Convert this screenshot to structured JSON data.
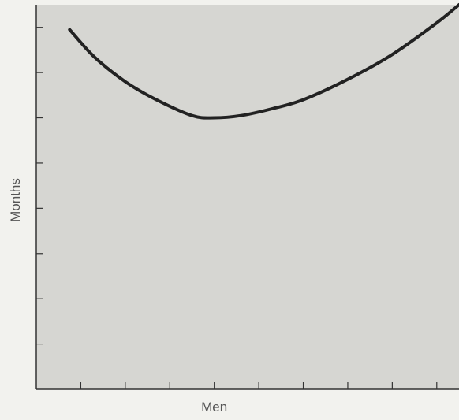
{
  "chart_data": {
    "type": "line",
    "title": "",
    "xlabel": "Men",
    "ylabel": "Months",
    "x_ticks": [
      1,
      2,
      3,
      4,
      5,
      6,
      7,
      8,
      9
    ],
    "y_ticks": [
      1,
      2,
      3,
      4,
      5,
      6,
      7,
      8
    ],
    "xlim": [
      0,
      9.5
    ],
    "ylim": [
      0,
      8.5
    ],
    "grid": false,
    "show_tick_labels": false,
    "series": [
      {
        "x": [
          0.75,
          1.3,
          2.0,
          2.7,
          3.5,
          4.0,
          4.6,
          5.3,
          6.0,
          7.0,
          8.0,
          9.0,
          9.5
        ],
        "y": [
          7.95,
          7.35,
          6.8,
          6.4,
          6.05,
          6.0,
          6.05,
          6.2,
          6.4,
          6.85,
          7.4,
          8.1,
          8.5
        ]
      }
    ],
    "colors": {
      "plot_background": "#d6d6d2",
      "page_background": "#f2f2ee",
      "axis": "#333333",
      "line": "#222222",
      "text": "#555555"
    }
  }
}
